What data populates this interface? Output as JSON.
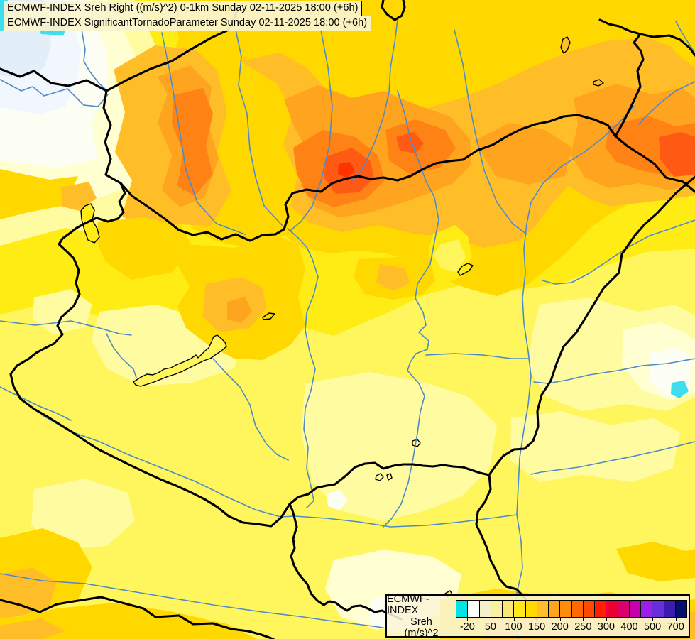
{
  "header": {
    "line1": "ECMWF-INDEX Sreh Right ((m/s)^2) 0-1km Sunday 02-11-2025 18:00 (+6h)",
    "line2": "ECMWF-INDEX SignificantTornadoParameter Sunday 02-11-2025 18:00 (+6h)"
  },
  "legend": {
    "title": "ECMWF-INDEX",
    "param": "Sreh",
    "units": "(m/s)^2",
    "cell_colors": [
      "#00E4E4",
      "#FFFFFF",
      "#F4F0CC",
      "#FAF0A2",
      "#FAE976",
      "#FFE81E",
      "#FFD800",
      "#FFBE28",
      "#FFA41E",
      "#FF8C0A",
      "#FF6A00",
      "#FF4800",
      "#FF1E00",
      "#EC0030",
      "#DA006E",
      "#C300AC",
      "#9C1FE8",
      "#6A2ED8",
      "#3A1CB0",
      "#05106E"
    ],
    "tick_labels": [
      "-20",
      "50",
      "100",
      "150",
      "200",
      "250",
      "300",
      "400",
      "500",
      "700"
    ]
  },
  "map": {
    "palette": {
      "cyan": "#3EDDEF",
      "blueLight": "#E2EFF9",
      "blueWhite": "#F1F7FD",
      "white1": "#FCFDF3",
      "cream": "#FFFFD2",
      "paleYellow": "#FFFBA0",
      "lightYellow": "#FFF65E",
      "yellow": "#FFEC14",
      "gold": "#FFD800",
      "amber": "#FFBE28",
      "orangeLight": "#FFA41E",
      "deepOrange": "#FF8214",
      "redOrange": "#FF5A14",
      "red": "#FF3200"
    },
    "river_color": "#4E8AC8",
    "border_color": "#000000"
  }
}
